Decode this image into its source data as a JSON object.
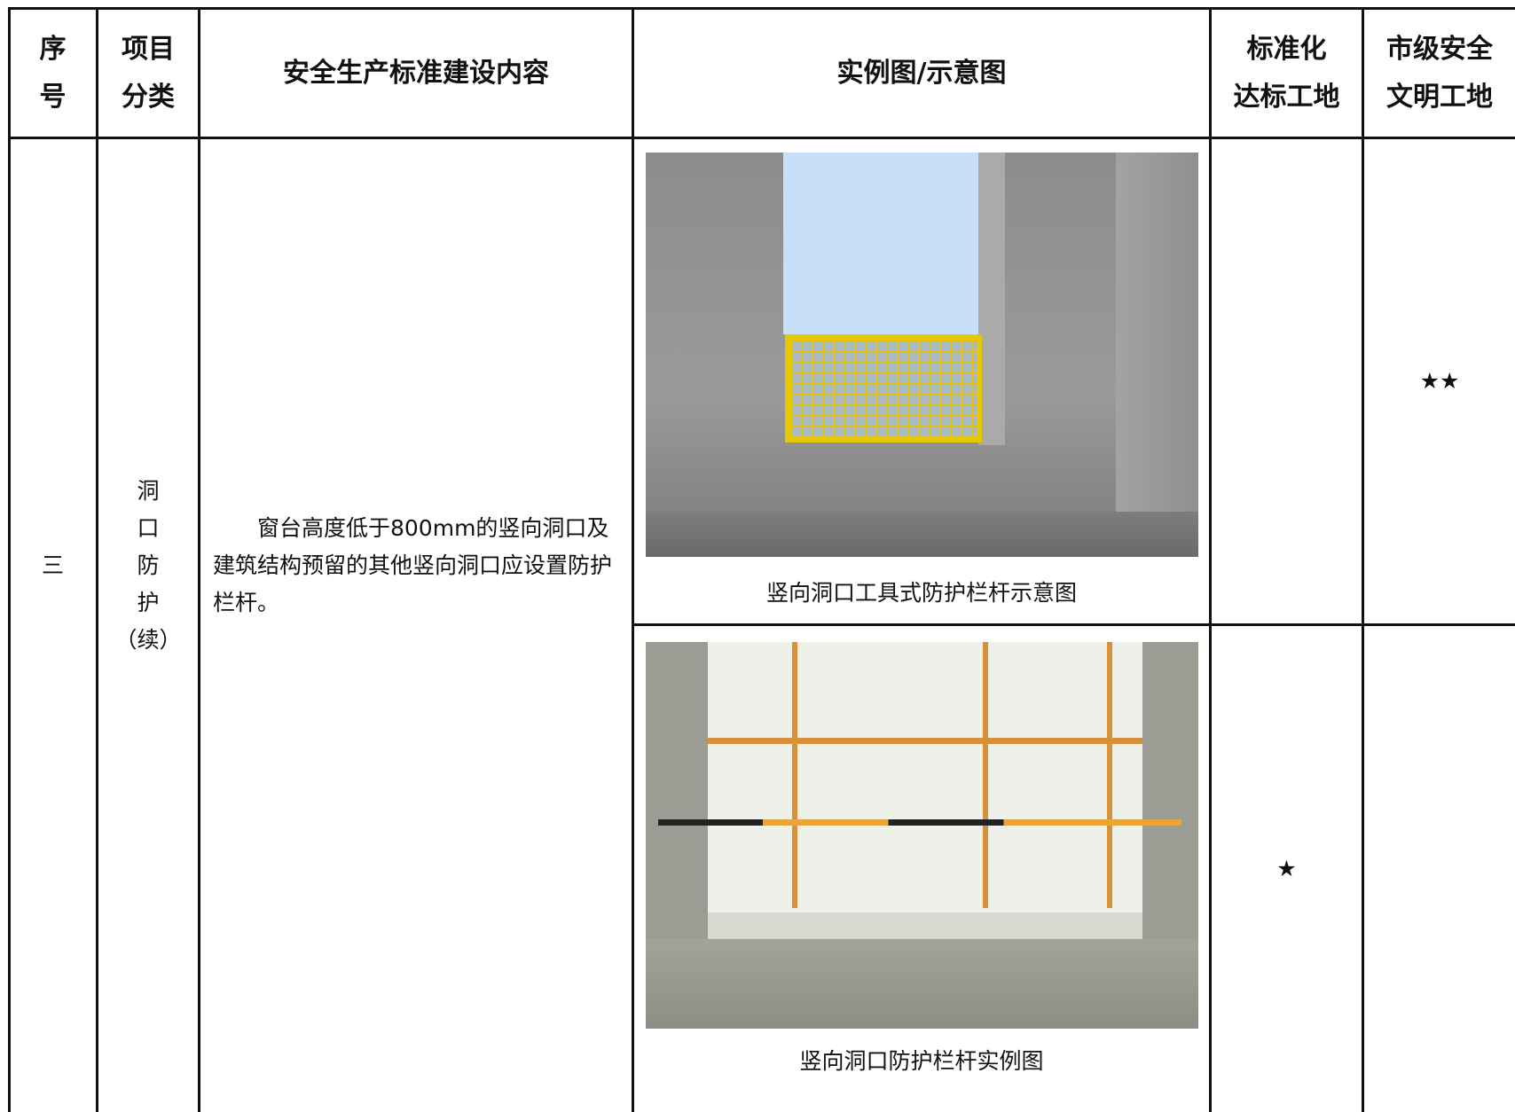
{
  "header": {
    "columns": [
      [
        "序",
        "号"
      ],
      [
        "项目",
        "分类"
      ],
      [
        "安全生产标准建设内容"
      ],
      [
        "实例图/示意图"
      ],
      [
        "标准化",
        "达标工地"
      ],
      [
        "市级安全",
        "文明工地"
      ]
    ]
  },
  "row": {
    "seq": "三",
    "category": [
      "洞",
      "口",
      "防",
      "护",
      "（续）"
    ],
    "content": "窗台高度低于800mm的竖向洞口及建筑结构预留的其他竖向洞口应设置防护栏杆。",
    "items": [
      {
        "caption": "竖向洞口工具式防护栏杆示意图",
        "standard": "",
        "city": "★★"
      },
      {
        "caption": "竖向洞口防护栏杆实例图",
        "standard": "★",
        "city": ""
      }
    ]
  }
}
